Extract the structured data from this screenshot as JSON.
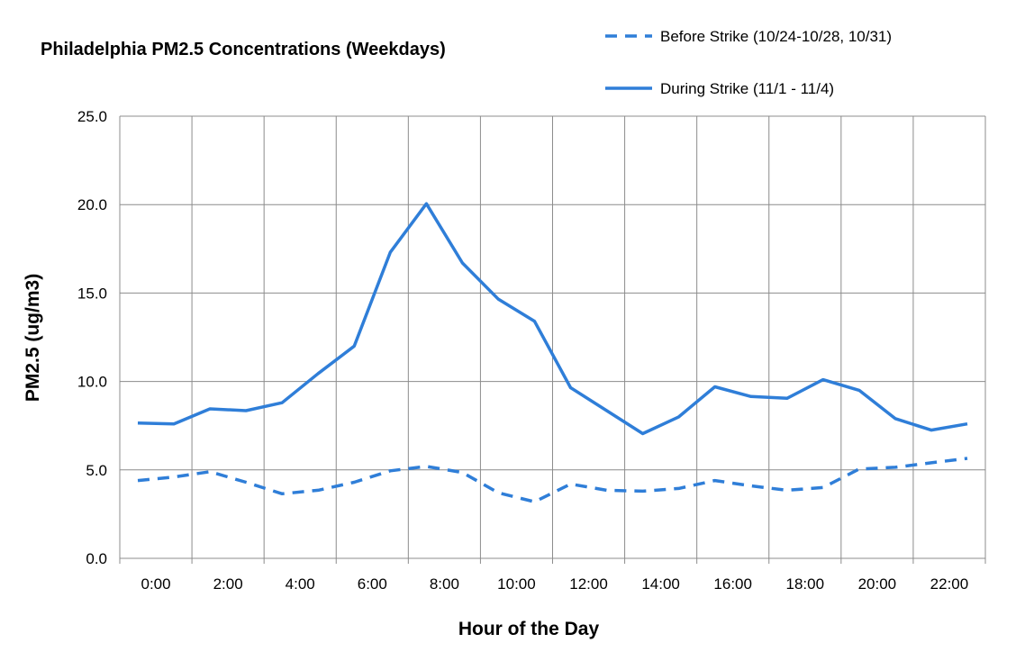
{
  "chart_data": {
    "type": "line",
    "title": "Philadelphia  PM2.5 Concentrations  (Weekdays)",
    "xlabel": "Hour of the Day",
    "ylabel": "PM2.5  (ug/m3)",
    "ylim": [
      0,
      25
    ],
    "y_ticks": [
      "0.0",
      "5.0",
      "10.0",
      "15.0",
      "20.0",
      "25.0"
    ],
    "x_ticks": [
      "0:00",
      "2:00",
      "4:00",
      "6:00",
      "8:00",
      "10:00",
      "12:00",
      "14:00",
      "16:00",
      "18:00",
      "20:00",
      "22:00"
    ],
    "grid": true,
    "legend_position": "top-right",
    "x": [
      0,
      1,
      2,
      3,
      4,
      5,
      6,
      7,
      8,
      9,
      10,
      11,
      12,
      13,
      14,
      15,
      16,
      17,
      18,
      19,
      20,
      21,
      22,
      23
    ],
    "series": [
      {
        "name": "Before Strike (10/24-10/28, 10/31)",
        "style": "dashed",
        "color": "#2f7ed8",
        "values": [
          4.4,
          4.6,
          4.9,
          4.3,
          3.65,
          3.85,
          4.3,
          4.95,
          5.2,
          4.85,
          3.7,
          3.2,
          4.2,
          3.85,
          3.8,
          3.95,
          4.4,
          4.1,
          3.85,
          4.0,
          5.05,
          5.15,
          5.4,
          5.65
        ]
      },
      {
        "name": "During Strike (11/1 - 11/4)",
        "style": "solid",
        "color": "#2f7ed8",
        "values": [
          7.65,
          7.6,
          8.45,
          8.35,
          8.8,
          10.45,
          12.0,
          17.3,
          20.05,
          16.7,
          14.65,
          13.4,
          9.65,
          8.35,
          7.05,
          8.0,
          9.7,
          9.15,
          9.05,
          10.1,
          9.5,
          7.9,
          7.25,
          7.6
        ]
      }
    ]
  }
}
